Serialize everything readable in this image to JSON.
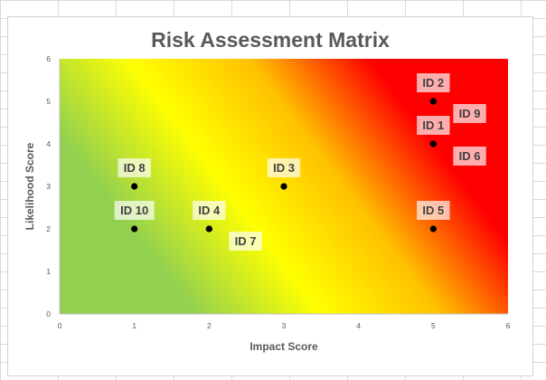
{
  "chart_data": {
    "type": "scatter",
    "title": "Risk Assessment Matrix",
    "xlabel": "Impact Score",
    "ylabel": "Likelihood Score",
    "xlim": [
      0,
      6
    ],
    "ylim": [
      0,
      6
    ],
    "x_ticks": [
      "0",
      "1",
      "2",
      "3",
      "4",
      "5",
      "6"
    ],
    "y_ticks": [
      "0",
      "1",
      "2",
      "3",
      "4",
      "5",
      "6"
    ],
    "grid": false,
    "background": "gradient green (low risk, bottom-left) to yellow to red (high risk, top-right)",
    "colors": {
      "low": "#92d050",
      "mid": "#ffff00",
      "high_mid": "#ffc000",
      "high": "#ff0000",
      "marker": "#000000",
      "axis_text": "#595959",
      "label_text": "#404040"
    },
    "points": [
      {
        "label": "ID 1",
        "x": 5,
        "y": 4,
        "label_pos": "above"
      },
      {
        "label": "ID 2",
        "x": 5,
        "y": 5,
        "label_pos": "above"
      },
      {
        "label": "ID 3",
        "x": 3,
        "y": 3,
        "label_pos": "above"
      },
      {
        "label": "ID 4",
        "x": 2,
        "y": 2,
        "label_pos": "above"
      },
      {
        "label": "ID 5",
        "x": 5,
        "y": 2,
        "label_pos": "above"
      },
      {
        "label": "ID 6",
        "x": 5,
        "y": 4,
        "label_pos": "right"
      },
      {
        "label": "ID 7",
        "x": 2,
        "y": 2,
        "label_pos": "right"
      },
      {
        "label": "ID 8",
        "x": 1,
        "y": 3,
        "label_pos": "above"
      },
      {
        "label": "ID 9",
        "x": 5,
        "y": 5,
        "label_pos": "right"
      },
      {
        "label": "ID 10",
        "x": 1,
        "y": 2,
        "label_pos": "above"
      }
    ]
  }
}
